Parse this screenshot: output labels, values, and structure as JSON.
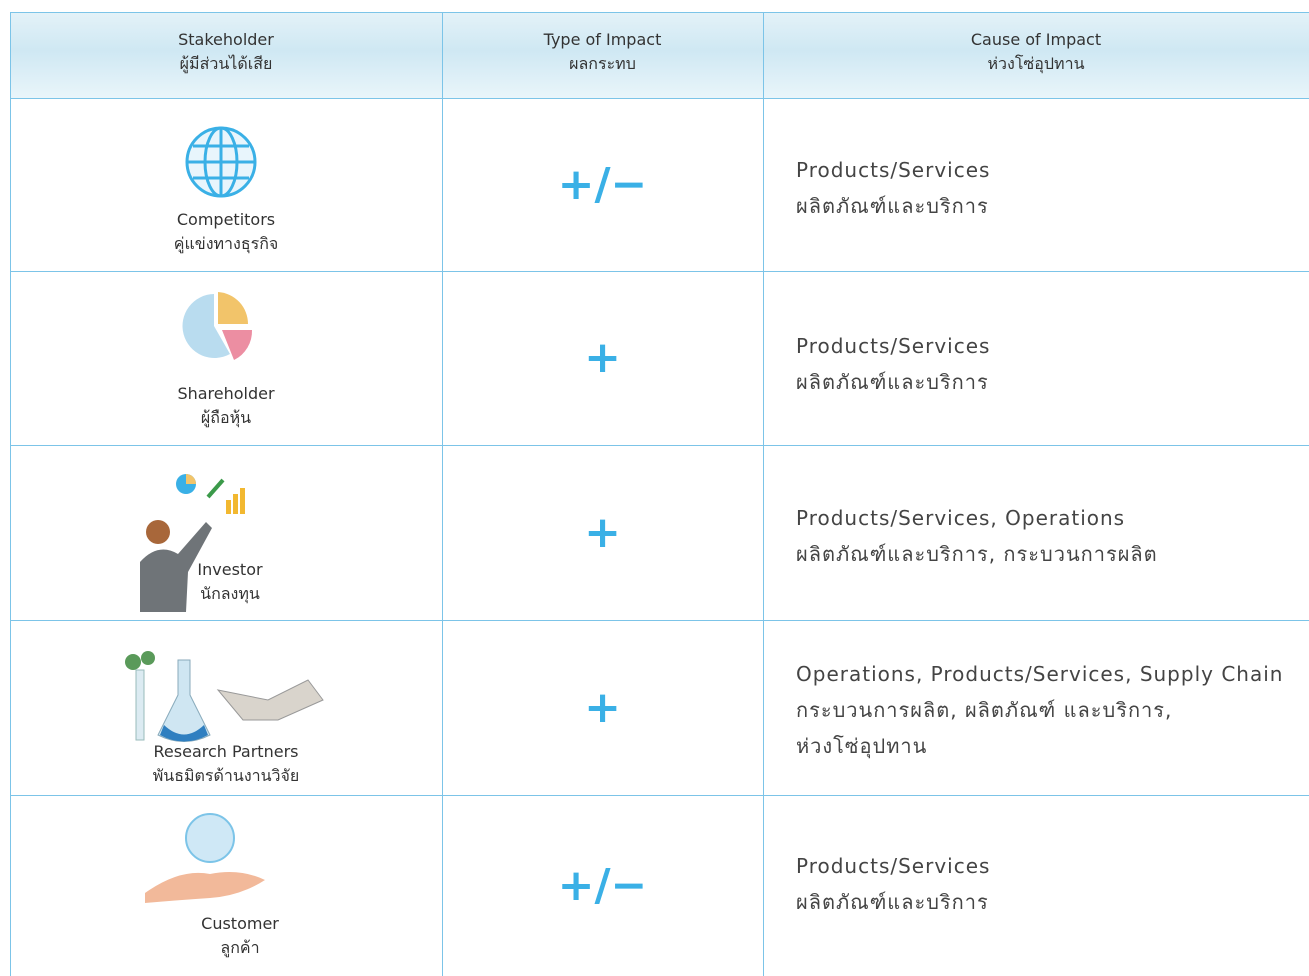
{
  "table": {
    "header": [
      [
        "Stakeholder",
        "ผู้มีส่วนได้เสีย"
      ],
      [
        "Type of Impact",
        "ผลกระทบ"
      ],
      [
        "Cause of Impact",
        "ห่วงโซ่อุปทาน"
      ]
    ],
    "rows": [
      {
        "stakeholder": [
          "Competitors",
          "คู่แข่งทางธุรกิจ"
        ],
        "impact": "+/−",
        "cause": [
          "Products/Services",
          "ผลิตภัณฑ์และบริการ"
        ]
      },
      {
        "stakeholder": [
          "Shareholder",
          "ผู้ถือหุ้น"
        ],
        "impact": "+",
        "cause": [
          "Products/Services",
          "ผลิตภัณฑ์และบริการ"
        ]
      },
      {
        "stakeholder": [
          "Investor",
          "นักลงทุน"
        ],
        "impact": "+",
        "cause": [
          "Products/Services, Operations",
          "ผลิตภัณฑ์และบริการ, กระบวนการผลิต"
        ]
      },
      {
        "stakeholder": [
          "Research Partners",
          "พันธมิตรด้านงานวิจัย"
        ],
        "impact": "+",
        "cause": [
          "Operations, Products/Services, Supply Chain",
          "กระบวนการผลิต,  ผลิตภัณฑ์ และบริการ,",
          "ห่วงโซ่อุปทาน"
        ]
      },
      {
        "stakeholder": [
          "Customer",
          "ลูกค้า"
        ],
        "impact": "+/−",
        "cause": [
          "Products/Services",
          "ผลิตภัณฑ์และบริการ"
        ]
      }
    ]
  }
}
